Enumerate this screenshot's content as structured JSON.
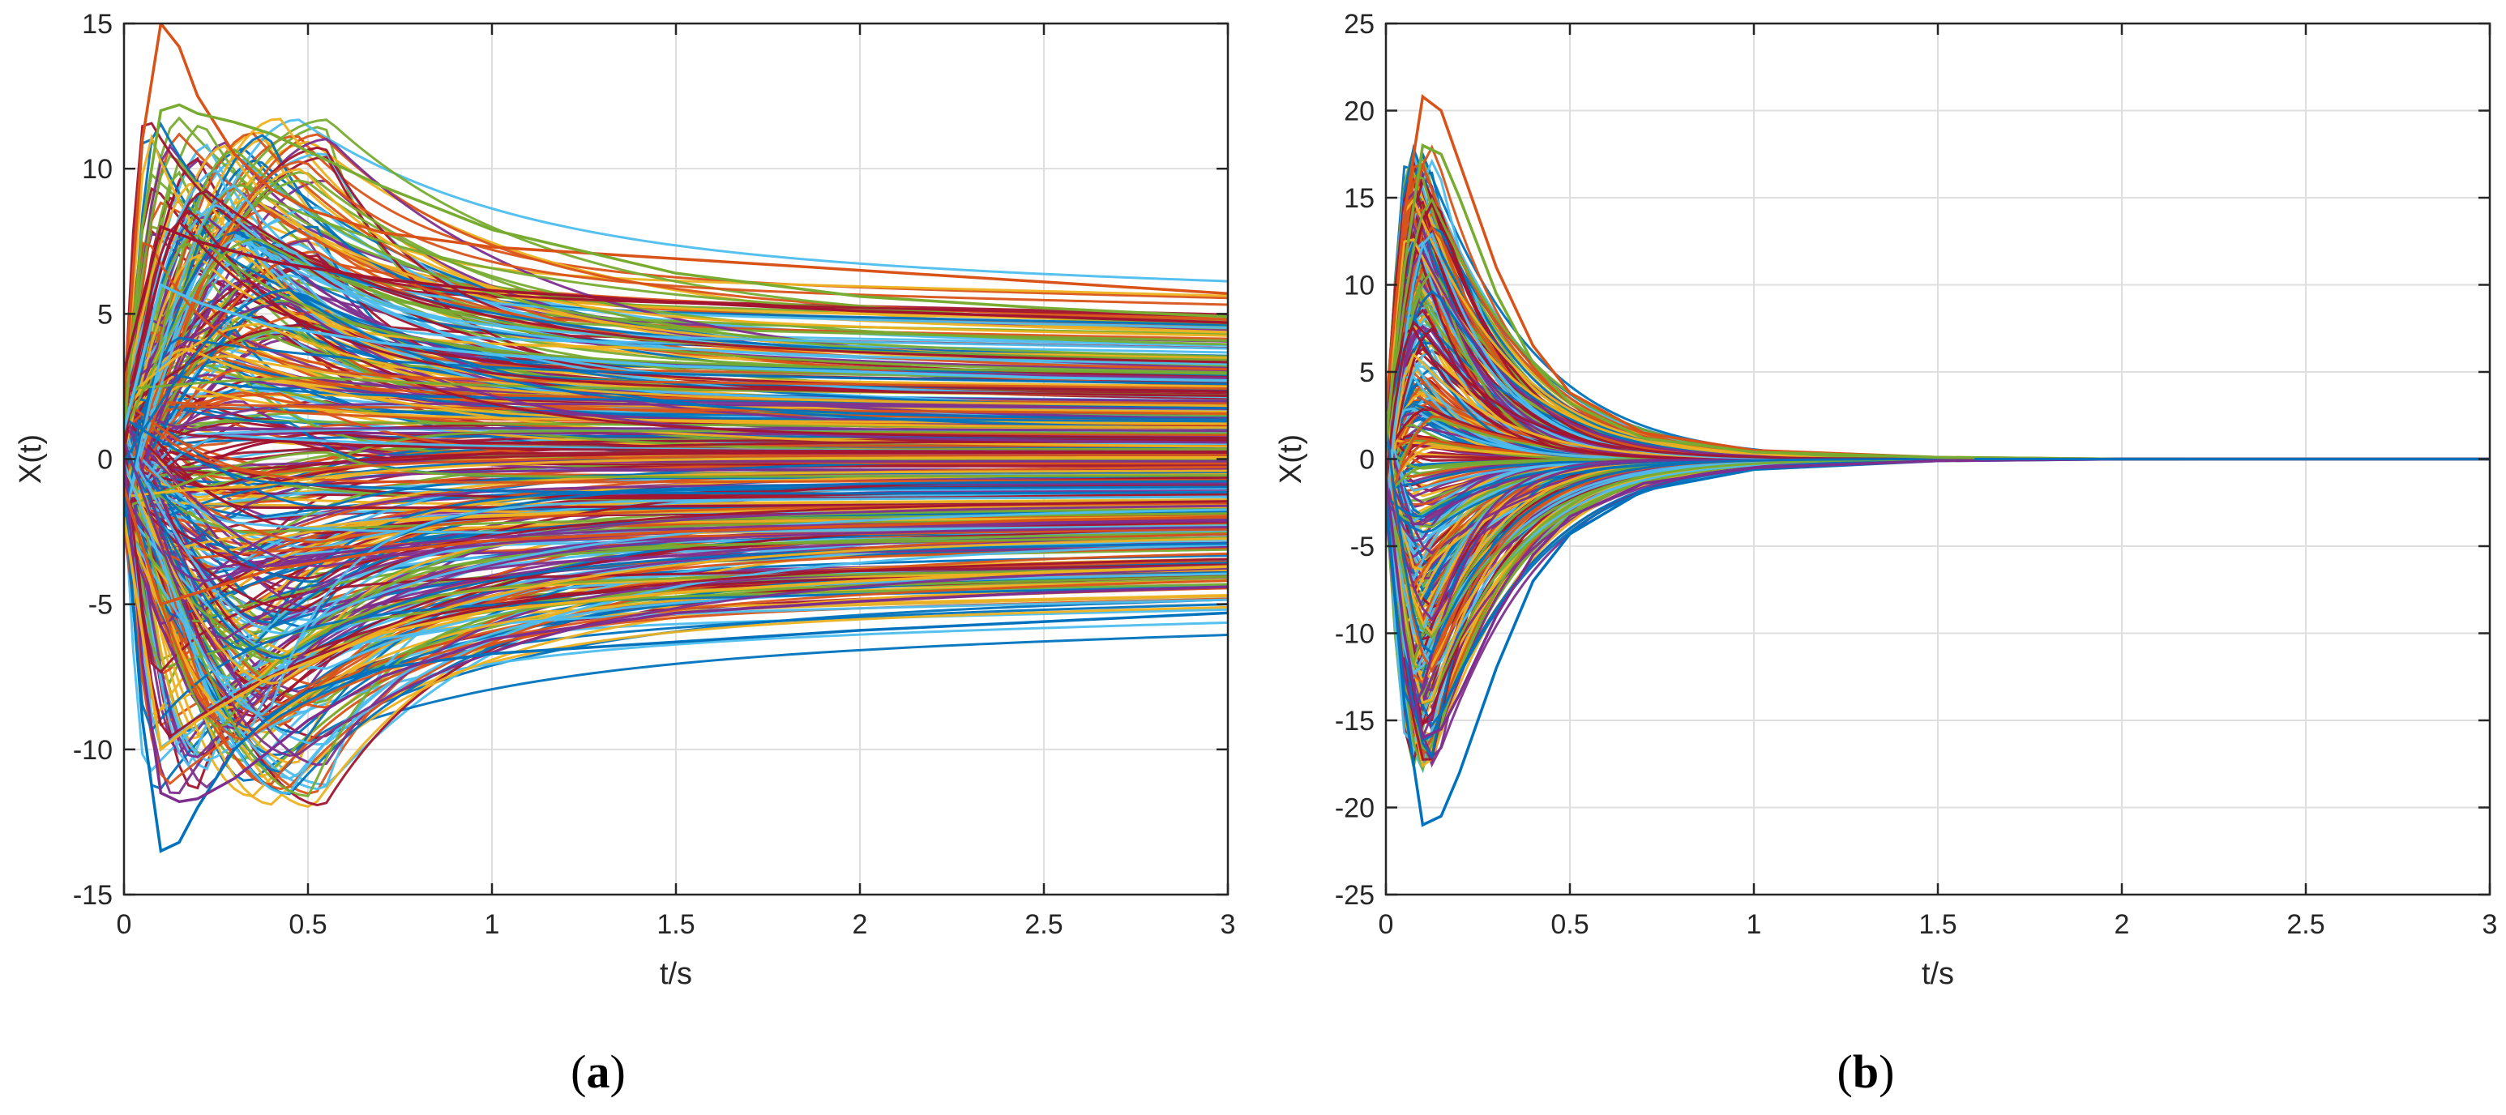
{
  "chart_data": [
    {
      "type": "line",
      "panel_label": "(a)",
      "xlabel": "t/s",
      "ylabel": "X(t)",
      "xlim": [
        0,
        3
      ],
      "ylim": [
        -15,
        15
      ],
      "xticks": [
        0,
        0.5,
        1,
        1.5,
        2,
        2.5,
        3
      ],
      "yticks": [
        -15,
        -10,
        -5,
        0,
        5,
        10,
        15
      ],
      "grid": true,
      "legend": "none",
      "series_count_estimate": 400,
      "description": "",
      "series": [
        {
          "x": [
            0,
            0.05,
            0.1,
            0.15,
            0.2,
            0.3,
            0.4,
            0.5,
            0.7,
            1.0,
            1.5,
            2.0,
            2.5,
            3.0
          ],
          "y": [
            2,
            11,
            15,
            14.2,
            12.5,
            10.5,
            9.3,
            8.6,
            7.8,
            7.3,
            6.9,
            6.5,
            6.1,
            5.7
          ]
        },
        {
          "x": [
            0,
            0.05,
            0.1,
            0.15,
            0.2,
            0.3,
            0.4,
            0.5,
            0.7,
            1.0,
            1.5,
            2.0,
            2.5,
            3.0
          ],
          "y": [
            1,
            8,
            12,
            12.2,
            11.9,
            11.6,
            11.2,
            10.6,
            9.4,
            7.9,
            6.4,
            5.6,
            5.2,
            4.9
          ]
        },
        {
          "x": [
            0,
            0.05,
            0.1,
            0.15,
            0.2,
            0.3,
            0.4,
            0.5,
            0.7,
            1.0,
            1.5,
            2.0,
            2.5,
            3.0
          ],
          "y": [
            -1,
            -9,
            -13.5,
            -13.2,
            -12,
            -10,
            -8.8,
            -8,
            -7.2,
            -6.7,
            -6.3,
            -5.9,
            -5.6,
            -5.3
          ]
        },
        {
          "x": [
            0,
            0.05,
            0.1,
            0.15,
            0.2,
            0.3,
            0.4,
            0.5,
            0.7,
            1.0,
            1.5,
            2.0,
            2.5,
            3.0
          ],
          "y": [
            0,
            -7,
            -11.5,
            -11.8,
            -11.7,
            -11,
            -10,
            -9,
            -7.5,
            -6.2,
            -5.3,
            -4.9,
            -4.6,
            -4.4
          ]
        },
        {
          "x": [
            0,
            0.1,
            0.2,
            0.4,
            0.7,
            1.0,
            1.5,
            2.0,
            2.5,
            3.0
          ],
          "y": [
            3,
            8,
            7.5,
            6.8,
            6.2,
            5.8,
            5.4,
            5.1,
            4.9,
            4.7
          ]
        },
        {
          "x": [
            0,
            0.1,
            0.2,
            0.4,
            0.7,
            1.0,
            1.5,
            2.0,
            2.5,
            3.0
          ],
          "y": [
            -2,
            -10,
            -9,
            -7.5,
            -6,
            -5.2,
            -4.6,
            -4.2,
            -3.9,
            -3.7
          ]
        },
        {
          "x": [
            0,
            0.1,
            0.2,
            0.4,
            0.7,
            1.0,
            1.5,
            2.0,
            2.5,
            3.0
          ],
          "y": [
            1,
            6,
            5.4,
            4.6,
            4,
            3.6,
            3.2,
            3,
            2.8,
            2.7
          ]
        },
        {
          "x": [
            0,
            0.1,
            0.2,
            0.4,
            0.7,
            1.0,
            1.5,
            2.0,
            2.5,
            3.0
          ],
          "y": [
            -1,
            -5,
            -4.6,
            -3.8,
            -3.2,
            -2.8,
            -2.5,
            -2.3,
            -2.1,
            -2
          ]
        }
      ]
    },
    {
      "type": "line",
      "panel_label": "(b)",
      "xlabel": "t/s",
      "ylabel": "X(t)",
      "xlim": [
        0,
        3
      ],
      "ylim": [
        -25,
        25
      ],
      "xticks": [
        0,
        0.5,
        1,
        1.5,
        2,
        2.5,
        3
      ],
      "yticks": [
        -25,
        -20,
        -15,
        -10,
        -5,
        0,
        5,
        10,
        15,
        20,
        25
      ],
      "grid": true,
      "legend": "none",
      "series_count_estimate": 400,
      "description": "",
      "series": [
        {
          "x": [
            0,
            0.05,
            0.1,
            0.15,
            0.2,
            0.3,
            0.4,
            0.5,
            0.7,
            1.0,
            1.5,
            2.0,
            3.0
          ],
          "y": [
            3,
            14,
            20.8,
            20,
            17,
            11,
            6.5,
            3.8,
            1.5,
            0.5,
            0.1,
            0,
            0
          ]
        },
        {
          "x": [
            0,
            0.05,
            0.1,
            0.15,
            0.2,
            0.3,
            0.4,
            0.5,
            0.7,
            1.0,
            1.5,
            2.0,
            3.0
          ],
          "y": [
            1,
            11,
            18,
            17.5,
            15,
            9.5,
            5.5,
            3.2,
            1.2,
            0.4,
            0.1,
            0,
            0
          ]
        },
        {
          "x": [
            0,
            0.05,
            0.1,
            0.15,
            0.2,
            0.3,
            0.4,
            0.5,
            0.7,
            1.0,
            1.5,
            2.0,
            3.0
          ],
          "y": [
            -2,
            -14,
            -21,
            -20.5,
            -18,
            -12,
            -7,
            -4.3,
            -1.8,
            -0.6,
            -0.1,
            0,
            0
          ]
        },
        {
          "x": [
            0,
            0.05,
            0.1,
            0.15,
            0.2,
            0.3,
            0.4,
            0.5,
            0.7,
            1.0,
            1.5,
            2.0,
            3.0
          ],
          "y": [
            -1,
            -10,
            -16,
            -15.5,
            -13.5,
            -9,
            -5.5,
            -3.3,
            -1.4,
            -0.5,
            -0.1,
            0,
            0
          ]
        }
      ]
    }
  ]
}
